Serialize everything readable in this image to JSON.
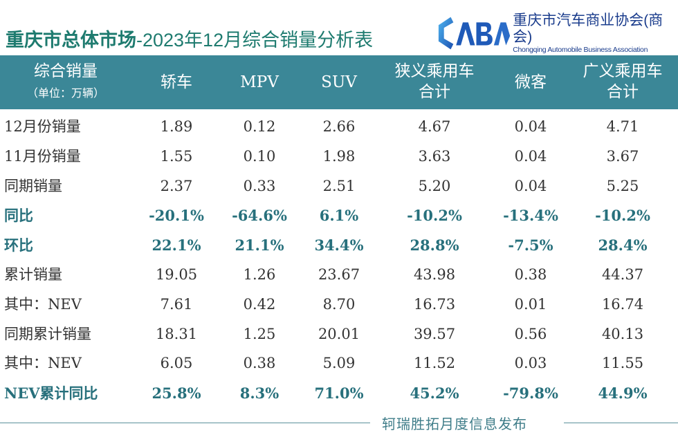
{
  "title": {
    "bold": "重庆市总体市场",
    "rest": "-2023年12月综合销量分析表"
  },
  "logo": {
    "mark": "CABA",
    "cn": "重庆市汽车商业协会(商会)",
    "en": "Chongqing Automobile Business Association"
  },
  "colors": {
    "title": "#1e7b6f",
    "header_bg": "#3b8797",
    "pct_text": "#27707c"
  },
  "table": {
    "header": {
      "label": "综合销量",
      "unit": "（单位：万辆）",
      "columns": [
        "轿车",
        "MPV",
        "SUV",
        "狭义乘用车合计",
        "微客",
        "广义乘用车合计"
      ],
      "columns_lines": [
        [
          "轿车"
        ],
        [
          "MPV"
        ],
        [
          "SUV"
        ],
        [
          "狭义乘用车",
          "合计"
        ],
        [
          "微客"
        ],
        [
          "广义乘用车",
          "合计"
        ]
      ]
    },
    "rows": [
      {
        "label": "12月份销量",
        "values": [
          "1.89",
          "0.12",
          "2.66",
          "4.67",
          "0.04",
          "4.71"
        ],
        "pct": false
      },
      {
        "label": "11月份销量",
        "values": [
          "1.55",
          "0.10",
          "1.98",
          "3.63",
          "0.04",
          "3.67"
        ],
        "pct": false
      },
      {
        "label": "同期销量",
        "values": [
          "2.37",
          "0.33",
          "2.51",
          "5.20",
          "0.04",
          "5.25"
        ],
        "pct": false
      },
      {
        "label": "同比",
        "values": [
          "-20.1%",
          "-64.6%",
          "6.1%",
          "-10.2%",
          "-13.4%",
          "-10.2%"
        ],
        "pct": true
      },
      {
        "label": "环比",
        "values": [
          "22.1%",
          "21.1%",
          "34.4%",
          "28.8%",
          "-7.5%",
          "28.4%"
        ],
        "pct": true
      },
      {
        "label": "累计销量",
        "values": [
          "19.05",
          "1.26",
          "23.67",
          "43.98",
          "0.38",
          "44.37"
        ],
        "pct": false
      },
      {
        "label": "其中：NEV",
        "values": [
          "7.61",
          "0.42",
          "8.70",
          "16.73",
          "0.01",
          "16.74"
        ],
        "pct": false
      },
      {
        "label": "同期累计销量",
        "values": [
          "18.31",
          "1.25",
          "20.01",
          "39.57",
          "0.56",
          "40.13"
        ],
        "pct": false
      },
      {
        "label": "其中：NEV",
        "values": [
          "6.05",
          "0.38",
          "5.09",
          "11.52",
          "0.03",
          "11.55"
        ],
        "pct": false
      },
      {
        "label": "NEV累计同比",
        "values": [
          "25.8%",
          "8.3%",
          "71.0%",
          "45.2%",
          "-79.8%",
          "44.9%"
        ],
        "pct": true
      }
    ]
  },
  "footer": "轲瑞胜拓月度信息发布"
}
